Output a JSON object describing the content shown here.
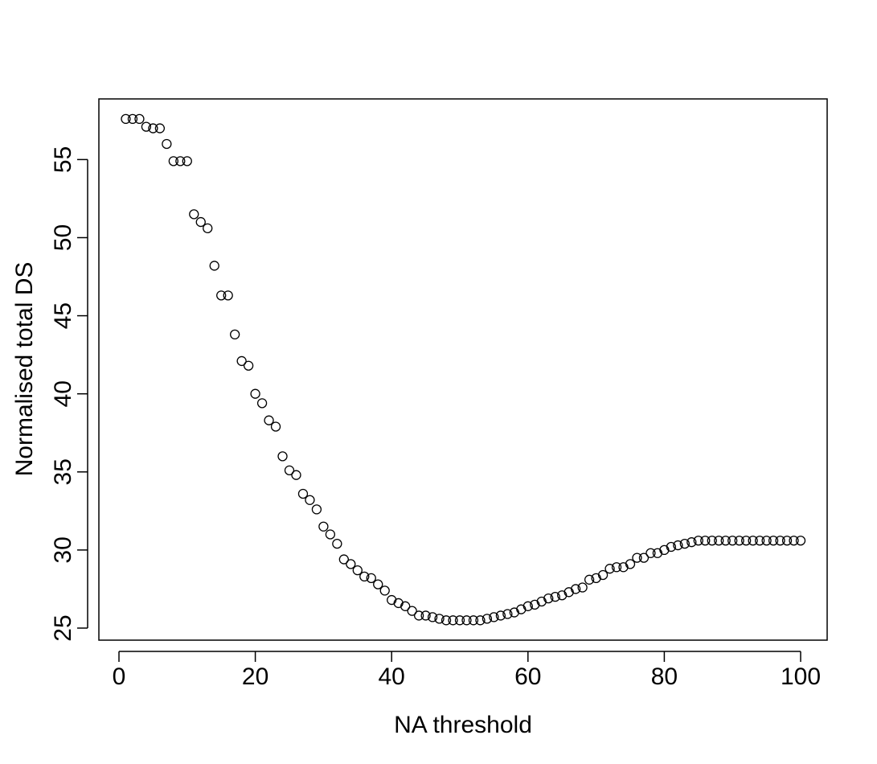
{
  "chart_data": {
    "type": "scatter",
    "title": "",
    "xlabel": "NA threshold",
    "ylabel": "Normalised total DS",
    "xlim": [
      1,
      100
    ],
    "ylim": [
      25,
      57.5
    ],
    "x_ticks": [
      0,
      20,
      40,
      60,
      80,
      100
    ],
    "y_ticks": [
      25,
      30,
      35,
      40,
      45,
      50,
      55
    ],
    "x_tick_labels": [
      "0",
      "20",
      "40",
      "60",
      "80",
      "100"
    ],
    "y_tick_labels": [
      "25",
      "30",
      "35",
      "40",
      "45",
      "50",
      "55"
    ],
    "grid": false,
    "legend": "none",
    "marker": "open-circle",
    "series": [
      {
        "x": [
          1,
          2,
          3,
          4,
          5,
          6,
          7,
          8,
          9,
          10,
          11,
          12,
          13,
          14,
          15,
          16,
          17,
          18,
          19,
          20,
          21,
          22,
          23,
          24,
          25,
          26,
          27,
          28,
          29,
          30,
          31,
          32,
          33,
          34,
          35,
          36,
          37,
          38,
          39,
          40,
          41,
          42,
          43,
          44,
          45,
          46,
          47,
          48,
          49,
          50,
          51,
          52,
          53,
          54,
          55,
          56,
          57,
          58,
          59,
          60,
          61,
          62,
          63,
          64,
          65,
          66,
          67,
          68,
          69,
          70,
          71,
          72,
          73,
          74,
          75,
          76,
          77,
          78,
          79,
          80,
          81,
          82,
          83,
          84,
          85,
          86,
          87,
          88,
          89,
          90,
          91,
          92,
          93,
          94,
          95,
          96,
          97,
          98,
          99,
          100
        ],
        "values": [
          57.6,
          57.6,
          57.6,
          57.1,
          57.0,
          57.0,
          56.0,
          54.9,
          54.9,
          54.9,
          51.5,
          51.0,
          50.6,
          48.2,
          46.3,
          46.3,
          43.8,
          42.1,
          41.8,
          40.0,
          39.4,
          38.3,
          37.9,
          36.0,
          35.1,
          34.8,
          33.6,
          33.2,
          32.6,
          31.5,
          31.0,
          30.4,
          29.4,
          29.1,
          28.7,
          28.3,
          28.2,
          27.8,
          27.4,
          26.8,
          26.6,
          26.4,
          26.1,
          25.8,
          25.8,
          25.7,
          25.6,
          25.5,
          25.5,
          25.5,
          25.5,
          25.5,
          25.5,
          25.6,
          25.7,
          25.8,
          25.9,
          26.0,
          26.2,
          26.4,
          26.5,
          26.7,
          26.9,
          27.0,
          27.1,
          27.3,
          27.5,
          27.6,
          28.1,
          28.2,
          28.4,
          28.8,
          28.9,
          28.9,
          29.1,
          29.5,
          29.5,
          29.8,
          29.8,
          30.0,
          30.2,
          30.3,
          30.4,
          30.5,
          30.6,
          30.6,
          30.6,
          30.6,
          30.6,
          30.6,
          30.6,
          30.6,
          30.6,
          30.6,
          30.6,
          30.6,
          30.6,
          30.6,
          30.6,
          30.6
        ]
      }
    ]
  }
}
